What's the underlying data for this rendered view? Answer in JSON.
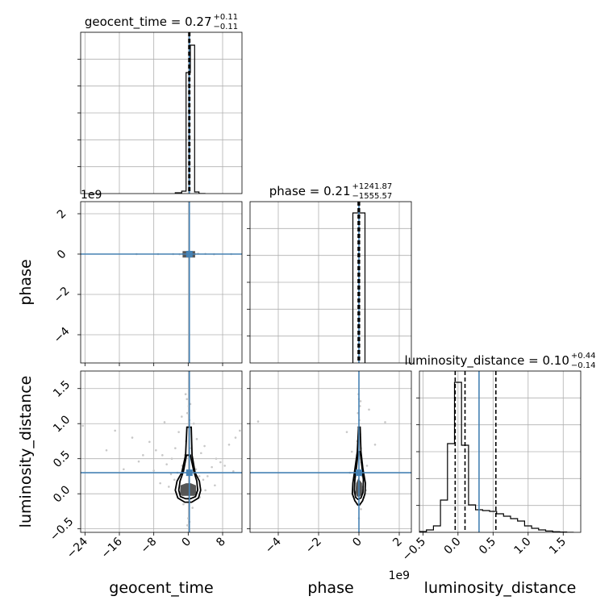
{
  "chart_data": {
    "type": "corner",
    "parameters": [
      "geocent_time",
      "phase",
      "luminosity_distance"
    ],
    "x_multiplier_labels": [
      "",
      "1e9",
      ""
    ],
    "y_multiplier_labels": [
      "",
      "1e9",
      ""
    ],
    "truth": {
      "geocent_time": 0.27,
      "phase": 0.0,
      "luminosity_distance": 0.3
    },
    "titles": [
      {
        "param": "geocent_time",
        "median": "0.27",
        "plus": "+0.11",
        "minus": "−0.11"
      },
      {
        "param": "phase",
        "median": "0.21",
        "plus": "+1241.87",
        "minus": "−1555.57"
      },
      {
        "param": "luminosity_distance",
        "median": "0.10",
        "plus": "+0.44",
        "minus": "−0.14"
      }
    ],
    "axes": {
      "geocent_time": {
        "range": [
          -25,
          12.5
        ],
        "ticks": [
          -24,
          -16,
          -8,
          0,
          8
        ],
        "tick_labels": [
          "−24",
          "−16",
          "−8",
          "0",
          "8"
        ]
      },
      "phase": {
        "range": [
          -5.4,
          2.6
        ],
        "ticks": [
          -4,
          -2,
          0,
          2
        ],
        "tick_labels": [
          "−4",
          "−2",
          "0",
          "2"
        ]
      },
      "luminosity_distance": {
        "range": [
          -0.55,
          1.75
        ],
        "ticks": [
          -0.5,
          0.0,
          0.5,
          1.0,
          1.5
        ],
        "tick_labels": [
          "−0.5",
          "0.0",
          "0.5",
          "1.0",
          "1.5"
        ]
      }
    },
    "diagonal_histograms": [
      {
        "param": "geocent_time",
        "bins_lo": [
          -3.0,
          -1.5,
          -0.5,
          0.5,
          1.5,
          2.5
        ],
        "bins_hi": [
          -1.5,
          -0.5,
          0.5,
          1.5,
          2.5,
          4.0
        ],
        "counts": [
          0.005,
          0.015,
          0.75,
          0.92,
          0.01,
          0.0
        ],
        "ymax": 1.0,
        "quantiles": [
          0.16,
          0.27,
          0.38
        ]
      },
      {
        "param": "phase",
        "bins_lo": [
          -0.3
        ],
        "bins_hi": [
          0.3
        ],
        "counts": [
          0.93
        ],
        "ymax": 1.0,
        "quantiles": [
          -0.04,
          0.0,
          0.03
        ]
      },
      {
        "param": "luminosity_distance",
        "bins_lo": [
          -0.55,
          -0.45,
          -0.35,
          -0.25,
          -0.15,
          -0.05,
          0.05,
          0.15,
          0.25,
          0.35,
          0.45,
          0.55,
          0.65,
          0.75,
          0.85,
          0.95,
          1.05,
          1.15,
          1.25,
          1.35,
          1.45,
          1.55
        ],
        "bins_hi": [
          -0.45,
          -0.35,
          -0.25,
          -0.15,
          -0.05,
          0.05,
          0.15,
          0.25,
          0.35,
          0.45,
          0.55,
          0.65,
          0.75,
          0.85,
          0.95,
          1.05,
          1.15,
          1.25,
          1.35,
          1.45,
          1.55,
          1.65
        ],
        "counts": [
          0.005,
          0.015,
          0.04,
          0.2,
          0.55,
          0.93,
          0.54,
          0.17,
          0.14,
          0.135,
          0.13,
          0.115,
          0.1,
          0.085,
          0.07,
          0.04,
          0.025,
          0.015,
          0.008,
          0.004,
          0.002,
          0.0
        ],
        "ymax": 1.0,
        "quantiles": [
          -0.04,
          0.1,
          0.54
        ]
      }
    ],
    "samples_2d": [
      {
        "x": "geocent_time",
        "y": "phase",
        "points": [
          [
            0.2,
            0.0
          ],
          [
            -0.5,
            0.0
          ],
          [
            0.8,
            -0.02
          ],
          [
            1.2,
            0.03
          ],
          [
            -1.3,
            0.01
          ],
          [
            -2.0,
            -0.01
          ],
          [
            2.3,
            0.02
          ],
          [
            0.1,
            0.05
          ],
          [
            -0.3,
            -0.05
          ],
          [
            1.6,
            0.0
          ],
          [
            -3.5,
            0.0
          ],
          [
            4.0,
            0.01
          ],
          [
            -7.0,
            0.0
          ],
          [
            6.0,
            -0.01
          ],
          [
            -12.0,
            0.0
          ],
          [
            10.0,
            0.0
          ],
          [
            -0.8,
            0.02
          ],
          [
            0.6,
            -0.03
          ]
        ]
      },
      {
        "x": "geocent_time",
        "y": "luminosity_distance",
        "points": [
          [
            -0.3,
            1.35
          ],
          [
            0.1,
            1.25
          ],
          [
            -0.2,
            1.15
          ],
          [
            0.3,
            1.05
          ],
          [
            -0.1,
            0.95
          ],
          [
            0.2,
            0.85
          ],
          [
            -0.5,
            0.75
          ],
          [
            0.4,
            0.65
          ],
          [
            -0.8,
            0.55
          ],
          [
            0.9,
            0.45
          ],
          [
            -1.4,
            0.4
          ],
          [
            1.8,
            0.35
          ],
          [
            -2.5,
            0.3
          ],
          [
            2.6,
            0.25
          ],
          [
            -3.2,
            0.2
          ],
          [
            3.5,
            0.2
          ],
          [
            -4.0,
            0.28
          ],
          [
            4.5,
            0.25
          ],
          [
            -5.0,
            0.42
          ],
          [
            5.5,
            0.38
          ],
          [
            -6.0,
            0.55
          ],
          [
            6.5,
            0.5
          ],
          [
            -7.5,
            0.62
          ],
          [
            7.5,
            0.45
          ],
          [
            -9.0,
            0.74
          ],
          [
            9.5,
            0.7
          ],
          [
            -10.5,
            0.55
          ],
          [
            11.0,
            0.8
          ],
          [
            -13.0,
            0.8
          ],
          [
            -15.0,
            0.35
          ],
          [
            -19.0,
            0.62
          ],
          [
            -24.5,
            0.97
          ],
          [
            12.0,
            0.9
          ],
          [
            -1.5,
            1.1
          ],
          [
            1.3,
            1.0
          ],
          [
            -2.2,
            0.88
          ],
          [
            2.0,
            0.78
          ],
          [
            -3.0,
            0.65
          ],
          [
            3.0,
            0.58
          ],
          [
            -0.6,
            1.42
          ],
          [
            0.5,
            1.28
          ],
          [
            -4.5,
            0.1
          ],
          [
            4.0,
            0.05
          ],
          [
            -6.5,
            0.15
          ],
          [
            6.2,
            0.12
          ],
          [
            -2.8,
            0.02
          ],
          [
            2.7,
            -0.05
          ],
          [
            -1.1,
            -0.15
          ],
          [
            1.0,
            -0.2
          ],
          [
            0.0,
            -0.35
          ],
          [
            -0.2,
            -0.45
          ],
          [
            0.3,
            -0.4
          ],
          [
            -5.5,
            1.02
          ],
          [
            8.5,
            0.4
          ],
          [
            -8.0,
            0.33
          ],
          [
            10.5,
            0.32
          ],
          [
            -11.5,
            0.46
          ],
          [
            -17.0,
            0.9
          ],
          [
            -3.8,
            0.5
          ],
          [
            3.8,
            0.68
          ]
        ]
      },
      {
        "x": "phase",
        "y": "luminosity_distance",
        "points": [
          [
            0.0,
            1.35
          ],
          [
            0.05,
            1.25
          ],
          [
            -0.05,
            1.15
          ],
          [
            0.02,
            1.05
          ],
          [
            -0.03,
            0.95
          ],
          [
            0.06,
            0.85
          ],
          [
            -0.08,
            0.75
          ],
          [
            0.1,
            0.65
          ],
          [
            -0.1,
            0.55
          ],
          [
            0.12,
            0.45
          ],
          [
            -0.15,
            0.35
          ],
          [
            0.15,
            0.25
          ],
          [
            -0.2,
            0.2
          ],
          [
            0.2,
            0.1
          ],
          [
            -0.25,
            0.02
          ],
          [
            0.25,
            -0.05
          ],
          [
            -0.1,
            -0.15
          ],
          [
            0.1,
            -0.22
          ],
          [
            0.0,
            -0.35
          ],
          [
            -5.0,
            1.03
          ],
          [
            1.3,
            1.02
          ],
          [
            0.5,
            1.2
          ],
          [
            -0.6,
            0.88
          ],
          [
            0.8,
            0.7
          ],
          [
            -0.35,
            0.6
          ],
          [
            0.4,
            0.4
          ],
          [
            -0.45,
            0.3
          ],
          [
            0.35,
            0.05
          ],
          [
            -0.02,
            1.42
          ],
          [
            0.08,
            1.32
          ]
        ]
      }
    ],
    "contours": [
      {
        "x": "geocent_time",
        "y": "luminosity_distance",
        "levels": [
          [
            [
              0.7,
              0.95
            ],
            [
              0.9,
              0.55
            ],
            [
              1.6,
              0.3
            ],
            [
              2.6,
              0.18
            ],
            [
              2.9,
              0.05
            ],
            [
              2.4,
              -0.06
            ],
            [
              0.8,
              -0.12
            ],
            [
              -0.8,
              -0.12
            ],
            [
              -2.4,
              -0.06
            ],
            [
              -3.0,
              0.05
            ],
            [
              -2.6,
              0.18
            ],
            [
              -1.5,
              0.3
            ],
            [
              -0.6,
              0.55
            ],
            [
              -0.3,
              0.95
            ]
          ],
          [
            [
              0.5,
              0.55
            ],
            [
              1.3,
              0.32
            ],
            [
              2.0,
              0.18
            ],
            [
              2.2,
              0.05
            ],
            [
              1.7,
              -0.04
            ],
            [
              0.5,
              -0.07
            ],
            [
              -0.6,
              -0.07
            ],
            [
              -1.8,
              -0.04
            ],
            [
              -2.2,
              0.05
            ],
            [
              -1.9,
              0.18
            ],
            [
              -1.1,
              0.32
            ],
            [
              -0.4,
              0.55
            ]
          ]
        ],
        "core": [
          [
            1.8,
            0.12
          ],
          [
            1.9,
            0.0
          ],
          [
            1.5,
            -0.03
          ],
          [
            -1.5,
            -0.03
          ],
          [
            -1.9,
            0.0
          ],
          [
            -1.8,
            0.12
          ],
          [
            -0.5,
            0.15
          ],
          [
            0.6,
            0.15
          ]
        ]
      },
      {
        "x": "phase",
        "y": "luminosity_distance",
        "levels": [
          [
            [
              0.06,
              0.95
            ],
            [
              0.1,
              0.6
            ],
            [
              0.2,
              0.35
            ],
            [
              0.32,
              0.15
            ],
            [
              0.3,
              0.0
            ],
            [
              0.18,
              -0.1
            ],
            [
              0.03,
              -0.16
            ],
            [
              -0.05,
              -0.16
            ],
            [
              -0.2,
              -0.1
            ],
            [
              -0.33,
              0.0
            ],
            [
              -0.3,
              0.15
            ],
            [
              -0.2,
              0.35
            ],
            [
              -0.08,
              0.6
            ],
            [
              -0.02,
              0.95
            ]
          ],
          [
            [
              0.06,
              0.6
            ],
            [
              0.15,
              0.38
            ],
            [
              0.22,
              0.2
            ],
            [
              0.2,
              0.02
            ],
            [
              0.1,
              -0.06
            ],
            [
              -0.05,
              -0.08
            ],
            [
              -0.17,
              -0.05
            ],
            [
              -0.23,
              0.05
            ],
            [
              -0.2,
              0.2
            ],
            [
              -0.12,
              0.38
            ],
            [
              -0.04,
              0.6
            ]
          ]
        ],
        "core": [
          [
            0.15,
            0.15
          ],
          [
            0.16,
            0.0
          ],
          [
            0.05,
            -0.04
          ],
          [
            -0.1,
            -0.04
          ],
          [
            -0.18,
            0.02
          ],
          [
            -0.14,
            0.15
          ],
          [
            -0.03,
            0.22
          ]
        ]
      },
      {
        "x": "geocent_time",
        "y": "phase",
        "levels": [],
        "core": [
          [
            -1.3,
            0.15
          ],
          [
            1.6,
            0.15
          ],
          [
            1.6,
            -0.17
          ],
          [
            -1.3,
            -0.17
          ]
        ]
      }
    ],
    "grid": true,
    "colors": {
      "truth": "#4682b4",
      "hist": "#000000",
      "grid": "#b0b0b0",
      "core": "#555555",
      "points": "#c8c8c8"
    }
  }
}
